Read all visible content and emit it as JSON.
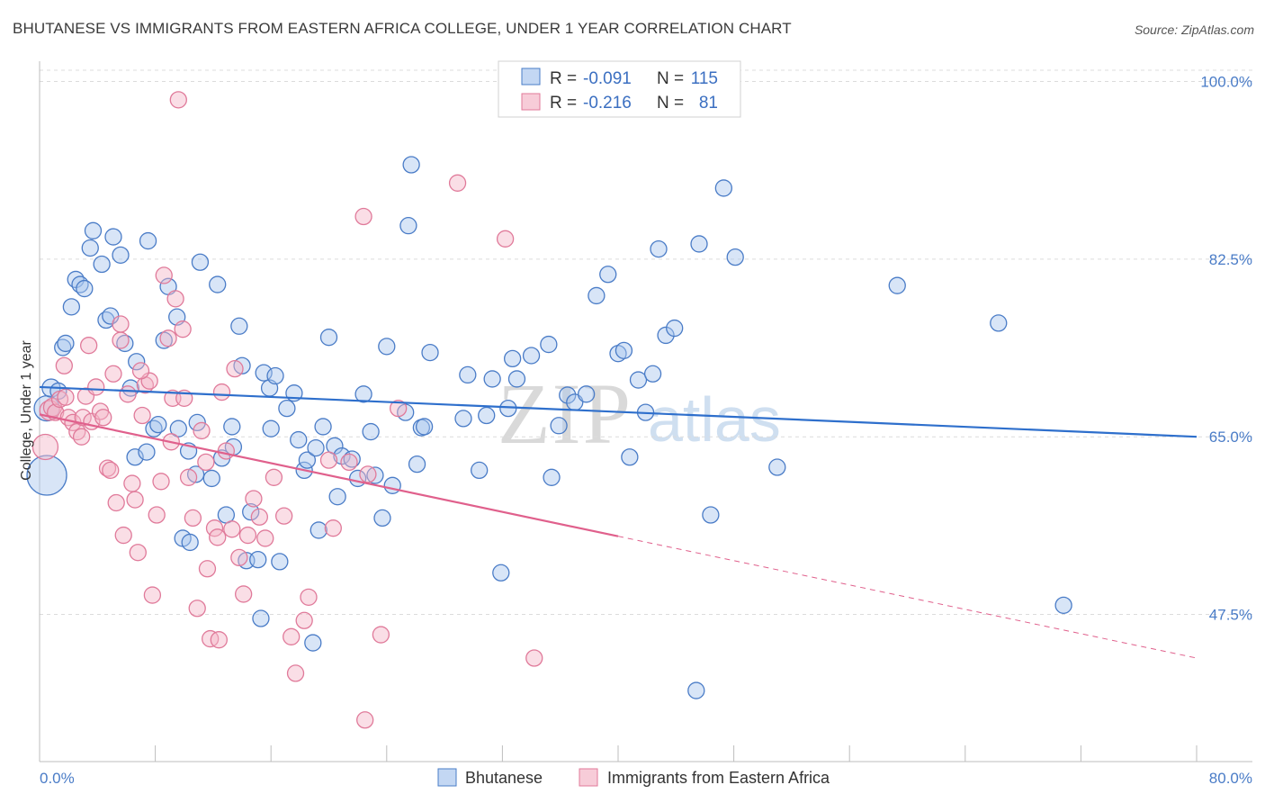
{
  "title": "BHUTANESE VS IMMIGRANTS FROM EASTERN AFRICA COLLEGE, UNDER 1 YEAR CORRELATION CHART",
  "source": "Source: ZipAtlas.com",
  "watermark": {
    "part1": "ZIP",
    "part2": "atlas"
  },
  "colors": {
    "blue_fill": "#a9c6ee",
    "blue_stroke": "#4a7cc7",
    "blue_line": "#2e6fcc",
    "pink_fill": "#f4b6c8",
    "pink_stroke": "#e07a9a",
    "pink_line": "#e0608c",
    "grid": "#dcdcdc",
    "tick_text": "#4a7cc7"
  },
  "legend": {
    "rows": [
      {
        "r_label": "R =",
        "r_value": "-0.091",
        "n_label": "N =",
        "n_value": "115"
      },
      {
        "r_label": "R =",
        "r_value": "-0.216",
        "n_label": "N =",
        "n_value": "81"
      }
    ]
  },
  "bottom_legend": [
    "Bhutanese",
    "Immigrants from Eastern Africa"
  ],
  "chart_data": {
    "type": "scatter",
    "title": "BHUTANESE VS IMMIGRANTS FROM EASTERN AFRICA COLLEGE, UNDER 1 YEAR CORRELATION CHART",
    "xlabel": "",
    "ylabel": "College, Under 1 year",
    "xlim": [
      0,
      80
    ],
    "ylim": [
      33,
      102
    ],
    "x_tick_labels": [
      "0.0%",
      "80.0%"
    ],
    "y_ticks": [
      100,
      82.5,
      65,
      47.5
    ],
    "y_tick_labels": [
      "100.0%",
      "82.5%",
      "65.0%",
      "47.5%"
    ],
    "grid": true,
    "series": [
      {
        "name": "Bhutanese",
        "r": -0.091,
        "n": 115,
        "trend": {
          "x0": 0,
          "y0": 69.9,
          "x1": 80,
          "y1": 65.0,
          "dashed_from": null
        },
        "points": [
          [
            0.5,
            61.2,
            22
          ],
          [
            0.5,
            67.8,
            14
          ],
          [
            0.8,
            69.8,
            10
          ],
          [
            1.3,
            69.5,
            9
          ],
          [
            1.6,
            73.8,
            9
          ],
          [
            1.8,
            74.2,
            9
          ],
          [
            2.2,
            77.8,
            9
          ],
          [
            2.5,
            80.5,
            9
          ],
          [
            2.8,
            80.0,
            9
          ],
          [
            3.1,
            79.6,
            9
          ],
          [
            3.5,
            83.6,
            9
          ],
          [
            3.7,
            85.3,
            9
          ],
          [
            4.3,
            82.0,
            9
          ],
          [
            4.6,
            76.5,
            9
          ],
          [
            4.9,
            76.9,
            9
          ],
          [
            5.1,
            84.7,
            9
          ],
          [
            5.6,
            82.9,
            9
          ],
          [
            5.9,
            74.2,
            9
          ],
          [
            6.3,
            69.8,
            9
          ],
          [
            6.7,
            72.4,
            9
          ],
          [
            6.6,
            63.0,
            9
          ],
          [
            7.4,
            63.5,
            9
          ],
          [
            7.5,
            84.3,
            9
          ],
          [
            7.9,
            65.8,
            9
          ],
          [
            8.2,
            66.2,
            9
          ],
          [
            8.6,
            74.5,
            9
          ],
          [
            8.9,
            79.8,
            9
          ],
          [
            9.5,
            76.8,
            9
          ],
          [
            9.6,
            65.8,
            9
          ],
          [
            9.9,
            55.0,
            9
          ],
          [
            10.3,
            63.6,
            9
          ],
          [
            10.4,
            54.6,
            9
          ],
          [
            10.9,
            66.4,
            9
          ],
          [
            10.8,
            61.3,
            9
          ],
          [
            11.1,
            82.2,
            9
          ],
          [
            11.9,
            60.9,
            9
          ],
          [
            12.3,
            80.0,
            9
          ],
          [
            12.6,
            62.9,
            9
          ],
          [
            12.9,
            57.3,
            9
          ],
          [
            13.3,
            66.0,
            9
          ],
          [
            13.4,
            64.0,
            9
          ],
          [
            13.8,
            75.9,
            9
          ],
          [
            14.0,
            72.0,
            9
          ],
          [
            14.3,
            52.8,
            9
          ],
          [
            14.6,
            57.6,
            9
          ],
          [
            15.1,
            52.9,
            9
          ],
          [
            15.3,
            47.1,
            9
          ],
          [
            15.5,
            71.3,
            9
          ],
          [
            15.9,
            69.8,
            9
          ],
          [
            16.0,
            65.8,
            9
          ],
          [
            16.3,
            71.0,
            9
          ],
          [
            16.6,
            52.7,
            9
          ],
          [
            17.1,
            67.8,
            9
          ],
          [
            17.6,
            69.3,
            9
          ],
          [
            17.9,
            64.7,
            9
          ],
          [
            18.3,
            61.7,
            9
          ],
          [
            18.5,
            62.7,
            9
          ],
          [
            18.9,
            44.7,
            9
          ],
          [
            19.1,
            63.9,
            9
          ],
          [
            19.3,
            55.8,
            9
          ],
          [
            19.6,
            66.0,
            9
          ],
          [
            20.0,
            74.8,
            9
          ],
          [
            20.4,
            64.1,
            9
          ],
          [
            20.6,
            59.1,
            9
          ],
          [
            20.9,
            63.1,
            9
          ],
          [
            21.6,
            62.8,
            9
          ],
          [
            22.0,
            60.9,
            9
          ],
          [
            22.4,
            69.2,
            9
          ],
          [
            22.9,
            65.5,
            9
          ],
          [
            23.2,
            61.2,
            9
          ],
          [
            23.7,
            57.0,
            9
          ],
          [
            24.0,
            73.9,
            9
          ],
          [
            24.4,
            60.2,
            9
          ],
          [
            25.3,
            67.4,
            9
          ],
          [
            25.5,
            85.8,
            9
          ],
          [
            25.7,
            91.8,
            9
          ],
          [
            26.1,
            62.3,
            9
          ],
          [
            26.4,
            65.9,
            9
          ],
          [
            26.6,
            66.0,
            9
          ],
          [
            27.0,
            73.3,
            9
          ],
          [
            29.3,
            66.8,
            9
          ],
          [
            29.6,
            71.1,
            9
          ],
          [
            30.4,
            61.7,
            9
          ],
          [
            30.9,
            67.1,
            9
          ],
          [
            31.3,
            70.7,
            9
          ],
          [
            31.9,
            51.6,
            9
          ],
          [
            32.4,
            67.8,
            9
          ],
          [
            32.7,
            72.7,
            9
          ],
          [
            33.0,
            70.7,
            9
          ],
          [
            34.0,
            73.0,
            9
          ],
          [
            35.2,
            74.1,
            9
          ],
          [
            35.4,
            61.0,
            9
          ],
          [
            35.9,
            66.1,
            9
          ],
          [
            36.5,
            69.1,
            9
          ],
          [
            37.0,
            68.4,
            9
          ],
          [
            37.8,
            69.2,
            9
          ],
          [
            38.5,
            78.9,
            9
          ],
          [
            39.3,
            81.0,
            9
          ],
          [
            40.0,
            73.2,
            9
          ],
          [
            40.4,
            73.5,
            9
          ],
          [
            40.8,
            63.0,
            9
          ],
          [
            41.4,
            70.6,
            9
          ],
          [
            41.9,
            67.4,
            9
          ],
          [
            42.4,
            71.2,
            9
          ],
          [
            42.8,
            83.5,
            9
          ],
          [
            43.3,
            75.0,
            9
          ],
          [
            43.9,
            75.7,
            9
          ],
          [
            45.6,
            84.0,
            9
          ],
          [
            46.4,
            57.3,
            9
          ],
          [
            47.3,
            89.5,
            9
          ],
          [
            48.1,
            82.7,
            9
          ],
          [
            51.0,
            62.0,
            9
          ],
          [
            59.3,
            79.9,
            9
          ],
          [
            66.3,
            76.2,
            9
          ],
          [
            70.8,
            48.4,
            9
          ],
          [
            45.4,
            40.0,
            9
          ]
        ]
      },
      {
        "name": "Immigrants from Eastern Africa",
        "r": -0.216,
        "n": 81,
        "trend": {
          "x0": 0,
          "y0": 67.2,
          "x1": 80,
          "y1": 43.2,
          "dashed_from": 40
        },
        "points": [
          [
            0.4,
            64.0,
            14
          ],
          [
            0.7,
            67.6,
            11
          ],
          [
            0.9,
            67.9,
            10
          ],
          [
            1.1,
            67.4,
            9
          ],
          [
            1.4,
            68.7,
            9
          ],
          [
            1.7,
            72.0,
            9
          ],
          [
            1.8,
            68.9,
            9
          ],
          [
            2.0,
            66.9,
            9
          ],
          [
            2.3,
            66.4,
            9
          ],
          [
            2.6,
            65.5,
            9
          ],
          [
            2.9,
            65.0,
            9
          ],
          [
            3.0,
            66.9,
            9
          ],
          [
            3.2,
            69.0,
            9
          ],
          [
            3.4,
            74.0,
            9
          ],
          [
            3.6,
            66.5,
            9
          ],
          [
            3.9,
            69.9,
            9
          ],
          [
            4.2,
            67.5,
            9
          ],
          [
            4.4,
            66.9,
            9
          ],
          [
            4.7,
            61.9,
            9
          ],
          [
            4.9,
            61.7,
            9
          ],
          [
            5.1,
            71.2,
            9
          ],
          [
            5.3,
            58.5,
            9
          ],
          [
            5.6,
            74.5,
            9
          ],
          [
            5.8,
            55.3,
            9
          ],
          [
            6.1,
            69.2,
            9
          ],
          [
            6.4,
            60.4,
            9
          ],
          [
            6.6,
            58.8,
            9
          ],
          [
            6.8,
            53.6,
            9
          ],
          [
            7.1,
            67.1,
            9
          ],
          [
            7.3,
            70.1,
            9
          ],
          [
            7.6,
            70.5,
            9
          ],
          [
            7.8,
            49.4,
            9
          ],
          [
            8.1,
            57.3,
            9
          ],
          [
            8.4,
            60.6,
            9
          ],
          [
            8.6,
            80.9,
            9
          ],
          [
            8.9,
            74.7,
            9
          ],
          [
            9.2,
            68.8,
            9
          ],
          [
            9.4,
            78.6,
            9
          ],
          [
            9.6,
            98.2,
            9
          ],
          [
            9.9,
            75.6,
            9
          ],
          [
            10.3,
            61.0,
            9
          ],
          [
            10.6,
            57.0,
            9
          ],
          [
            10.9,
            48.1,
            9
          ],
          [
            11.2,
            65.6,
            9
          ],
          [
            11.5,
            62.5,
            9
          ],
          [
            11.8,
            45.1,
            9
          ],
          [
            12.1,
            56.0,
            9
          ],
          [
            12.3,
            55.1,
            9
          ],
          [
            12.6,
            69.4,
            9
          ],
          [
            12.9,
            63.6,
            9
          ],
          [
            13.3,
            55.9,
            9
          ],
          [
            13.5,
            71.7,
            9
          ],
          [
            13.8,
            53.1,
            9
          ],
          [
            14.1,
            49.5,
            9
          ],
          [
            14.4,
            55.3,
            9
          ],
          [
            14.8,
            58.9,
            9
          ],
          [
            15.2,
            57.1,
            9
          ],
          [
            15.6,
            55.0,
            9
          ],
          [
            16.9,
            57.2,
            9
          ],
          [
            17.4,
            45.3,
            9
          ],
          [
            17.7,
            41.7,
            9
          ],
          [
            18.3,
            46.9,
            9
          ],
          [
            18.6,
            49.2,
            9
          ],
          [
            20.3,
            56.0,
            9
          ],
          [
            21.4,
            62.5,
            9
          ],
          [
            22.4,
            86.7,
            9
          ],
          [
            22.7,
            61.3,
            9
          ],
          [
            22.5,
            37.1,
            9
          ],
          [
            23.6,
            45.5,
            9
          ],
          [
            24.8,
            67.8,
            9
          ],
          [
            28.9,
            90.0,
            9
          ],
          [
            32.2,
            84.5,
            9
          ],
          [
            34.2,
            43.2,
            9
          ],
          [
            5.6,
            76.1,
            9
          ],
          [
            7.0,
            71.5,
            9
          ],
          [
            10.0,
            68.8,
            9
          ],
          [
            11.6,
            52.0,
            9
          ],
          [
            12.4,
            45.0,
            9
          ],
          [
            20.0,
            62.7,
            9
          ],
          [
            16.2,
            61.0,
            9
          ],
          [
            9.1,
            64.5,
            9
          ]
        ]
      }
    ]
  }
}
